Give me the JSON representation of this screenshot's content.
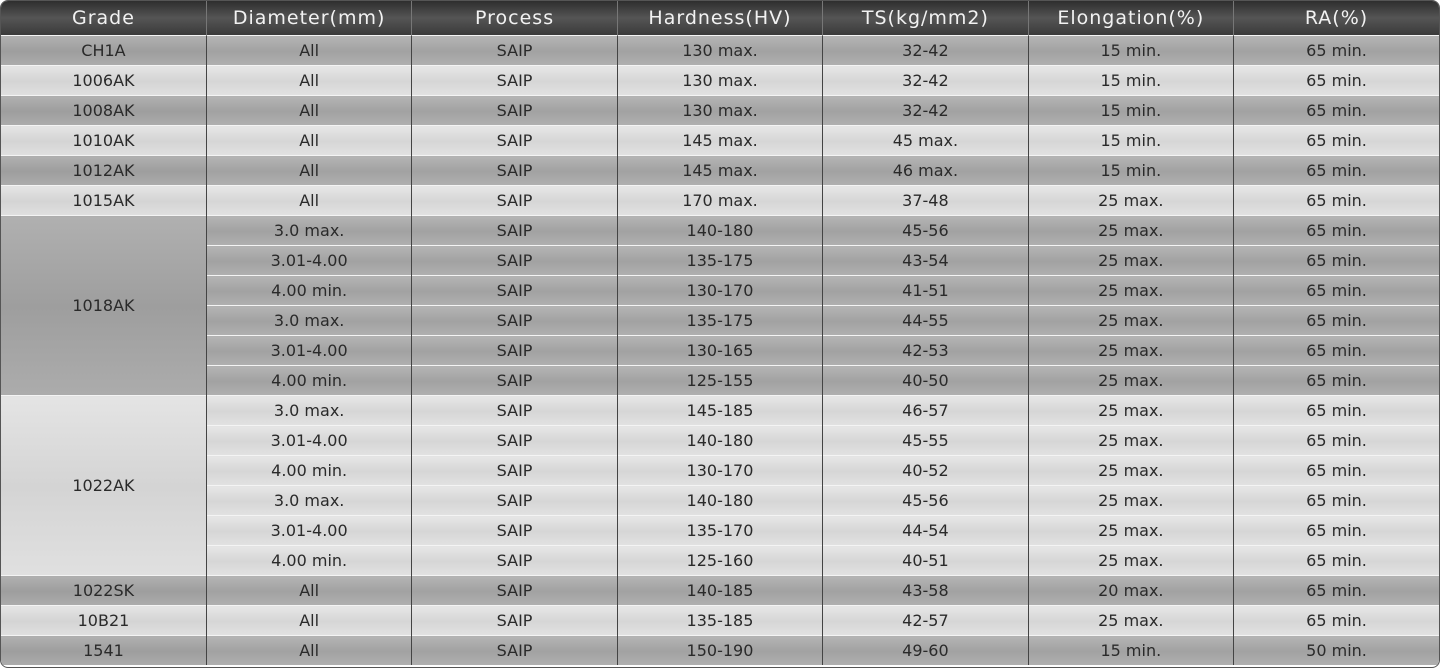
{
  "table": {
    "headers": [
      "Grade",
      "Diameter(mm)",
      "Process",
      "Hardness(HV)",
      "TS(kg/mm2)",
      "Elongation(%)",
      "RA(%)"
    ],
    "groups": [
      {
        "grade": "CH1A",
        "rows": [
          [
            "All",
            "SAIP",
            "130 max.",
            "32-42",
            "15 min.",
            "65 min."
          ]
        ]
      },
      {
        "grade": "1006AK",
        "rows": [
          [
            "All",
            "SAIP",
            "130 max.",
            "32-42",
            "15 min.",
            "65 min."
          ]
        ]
      },
      {
        "grade": "1008AK",
        "rows": [
          [
            "All",
            "SAIP",
            "130 max.",
            "32-42",
            "15 min.",
            "65 min."
          ]
        ]
      },
      {
        "grade": "1010AK",
        "rows": [
          [
            "All",
            "SAIP",
            "145 max.",
            "45 max.",
            "15 min.",
            "65 min."
          ]
        ]
      },
      {
        "grade": "1012AK",
        "rows": [
          [
            "All",
            "SAIP",
            "145 max.",
            "46 max.",
            "15 min.",
            "65 min."
          ]
        ]
      },
      {
        "grade": "1015AK",
        "rows": [
          [
            "All",
            "SAIP",
            "170 max.",
            "37-48",
            "25 max.",
            "65 min."
          ]
        ]
      },
      {
        "grade": "1018AK",
        "rows": [
          [
            "3.0 max.",
            "SAIP",
            "140-180",
            "45-56",
            "25 max.",
            "65 min."
          ],
          [
            "3.01-4.00",
            "SAIP",
            "135-175",
            "43-54",
            "25 max.",
            "65 min."
          ],
          [
            "4.00 min.",
            "SAIP",
            "130-170",
            "41-51",
            "25 max.",
            "65 min."
          ],
          [
            "3.0 max.",
            "SAIP",
            "135-175",
            "44-55",
            "25 max.",
            "65 min."
          ],
          [
            "3.01-4.00",
            "SAIP",
            "130-165",
            "42-53",
            "25 max.",
            "65 min."
          ],
          [
            "4.00 min.",
            "SAIP",
            "125-155",
            "40-50",
            "25 max.",
            "65 min."
          ]
        ]
      },
      {
        "grade": "1022AK",
        "rows": [
          [
            "3.0 max.",
            "SAIP",
            "145-185",
            "46-57",
            "25 max.",
            "65 min."
          ],
          [
            "3.01-4.00",
            "SAIP",
            "140-180",
            "45-55",
            "25 max.",
            "65 min."
          ],
          [
            "4.00 min.",
            "SAIP",
            "130-170",
            "40-52",
            "25 max.",
            "65 min."
          ],
          [
            "3.0 max.",
            "SAIP",
            "140-180",
            "45-56",
            "25 max.",
            "65 min."
          ],
          [
            "3.01-4.00",
            "SAIP",
            "135-170",
            "44-54",
            "25 max.",
            "65 min."
          ],
          [
            "4.00 min.",
            "SAIP",
            "125-160",
            "40-51",
            "25 max.",
            "65 min."
          ]
        ]
      },
      {
        "grade": "1022SK",
        "rows": [
          [
            "All",
            "SAIP",
            "140-185",
            "43-58",
            "20 max.",
            "65 min."
          ]
        ]
      },
      {
        "grade": "10B21",
        "rows": [
          [
            "All",
            "SAIP",
            "135-185",
            "42-57",
            "25 max.",
            "65 min."
          ]
        ]
      },
      {
        "grade": "1541",
        "rows": [
          [
            "All",
            "SAIP",
            "150-190",
            "49-60",
            "15 min.",
            "50 min."
          ]
        ]
      }
    ]
  }
}
